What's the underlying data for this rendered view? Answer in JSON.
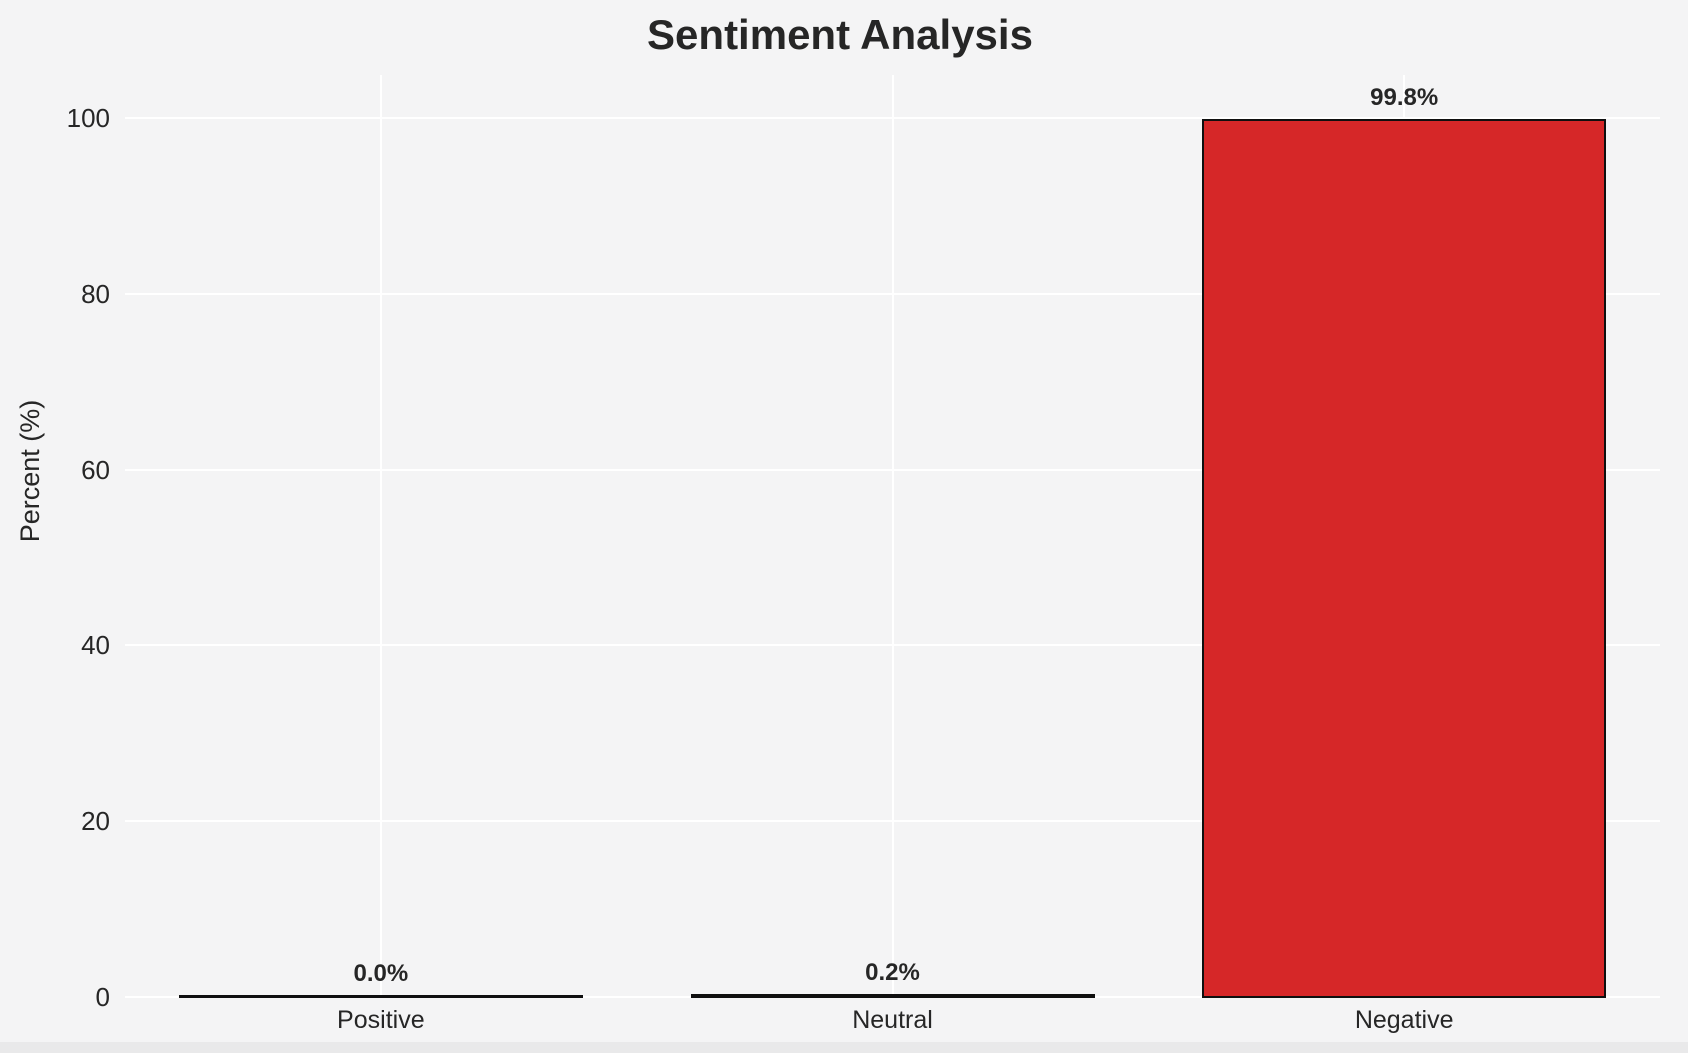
{
  "chart_data": {
    "type": "bar",
    "title": "Sentiment Analysis",
    "ylabel": "Percent (%)",
    "xlabel": "",
    "categories": [
      "Positive",
      "Neutral",
      "Negative"
    ],
    "values": [
      0.0,
      0.2,
      99.8
    ],
    "value_labels": [
      "0.0%",
      "0.2%",
      "99.8%"
    ],
    "yticks": [
      0,
      20,
      40,
      60,
      80,
      100
    ],
    "ytick_labels": [
      "0",
      "20",
      "40",
      "60",
      "80",
      "100"
    ],
    "ylim": [
      0,
      105
    ],
    "grid": "horizontal-and-vertical",
    "gridline_color": "#ffffff",
    "legend": "none",
    "bar_fill_color": "#d62728",
    "bar_edge_color": "#0f0f0f",
    "background_color": "#f4f4f5",
    "text_color": "#262626"
  }
}
